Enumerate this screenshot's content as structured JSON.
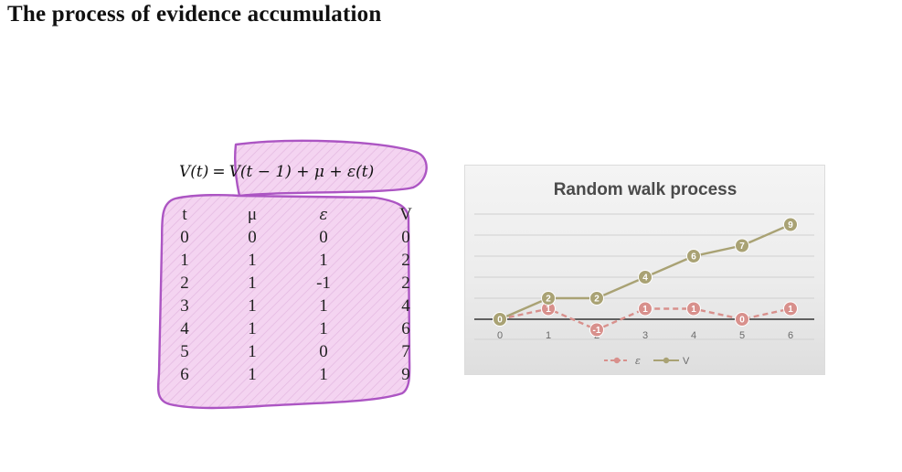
{
  "slide": {
    "title": "The process of evidence accumulation"
  },
  "formula": {
    "lhs": "V(t)",
    "equals": "=",
    "rhs": "V(t − 1) + μ + ε(t)"
  },
  "table": {
    "headers": [
      "t",
      "μ",
      "ε",
      "V"
    ],
    "rows": [
      [
        "0",
        "0",
        "0",
        "0"
      ],
      [
        "1",
        "1",
        "1",
        "2"
      ],
      [
        "2",
        "1",
        "-1",
        "2"
      ],
      [
        "3",
        "1",
        "1",
        "4"
      ],
      [
        "4",
        "1",
        "1",
        "6"
      ],
      [
        "5",
        "1",
        "0",
        "7"
      ],
      [
        "6",
        "1",
        "1",
        "9"
      ]
    ]
  },
  "colors": {
    "highlight_fill": "#f4d2f1",
    "highlight_stroke": "#a84cc0",
    "v_series": "#a9a274",
    "eps_series": "#d8908c",
    "zero_line": "#333333",
    "grid": "#d0d0d0"
  },
  "chart_data": {
    "type": "line",
    "title": "Random walk  process",
    "x": [
      0,
      1,
      2,
      3,
      4,
      5,
      6
    ],
    "categories": [
      "0",
      "1",
      "2",
      "3",
      "4",
      "5",
      "6"
    ],
    "ylim": [
      -1,
      10
    ],
    "grid": true,
    "legend_position": "bottom",
    "series": [
      {
        "name": "ε",
        "values": [
          0,
          1,
          -1,
          1,
          1,
          0,
          1
        ],
        "labels": [
          "0",
          "1",
          "-1",
          "1",
          "1",
          "0",
          "1"
        ],
        "style": "dashed"
      },
      {
        "name": "V",
        "values": [
          0,
          2,
          2,
          4,
          6,
          7,
          9
        ],
        "labels": [
          "0",
          "2",
          "2",
          "4",
          "6",
          "7",
          "9"
        ],
        "style": "solid"
      }
    ]
  }
}
